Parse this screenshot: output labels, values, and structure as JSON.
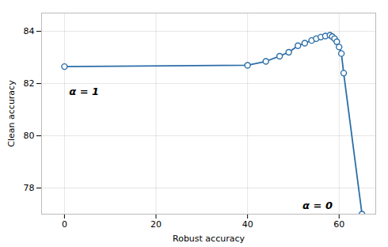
{
  "chart_data": {
    "type": "line",
    "x": [
      0.0,
      40.0,
      44.0,
      47.0,
      49.0,
      51.0,
      52.5,
      54.0,
      55.0,
      56.0,
      57.0,
      58.0,
      58.5,
      59.0,
      59.5,
      60.0,
      60.5,
      61.0,
      65.0
    ],
    "values": [
      82.65,
      82.7,
      82.85,
      83.05,
      83.2,
      83.45,
      83.55,
      83.65,
      83.72,
      83.78,
      83.82,
      83.85,
      83.8,
      83.72,
      83.6,
      83.4,
      83.15,
      82.4,
      77.0
    ],
    "color": "#2b6ea8",
    "marker": "circle",
    "xlabel": "Robust accuracy",
    "ylabel": "Clean accuracy",
    "xlim": [
      -5,
      68
    ],
    "ylim": [
      77.0,
      84.7
    ],
    "xticks": [
      0,
      20,
      40,
      60
    ],
    "yticks": [
      78,
      80,
      82,
      84
    ],
    "grid": true,
    "annotations": [
      {
        "text": "α = 1",
        "x": 1.0,
        "y": 81.55
      },
      {
        "text": "α = 0",
        "x": 52.0,
        "y": 77.2
      }
    ]
  }
}
